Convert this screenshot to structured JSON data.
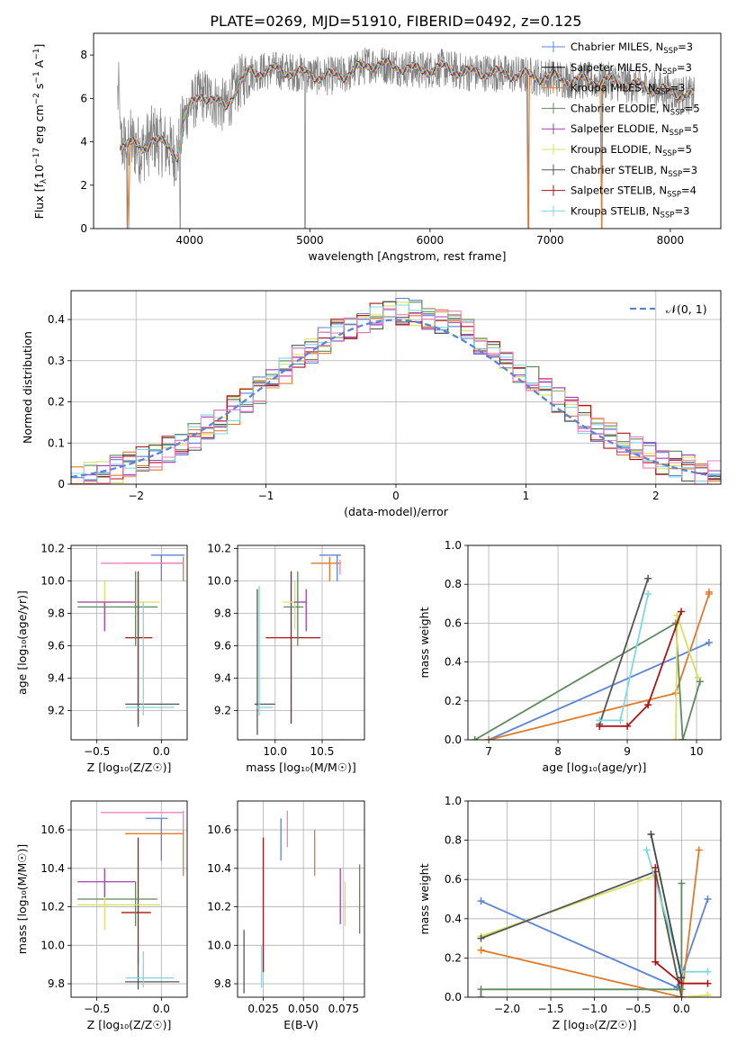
{
  "figure": {
    "title": "PLATE=0269, MJD=51910, FIBERID=0492, z=0.125"
  },
  "colors": {
    "Chabrier MILES": "#5b84d6",
    "Salpeter MILES": "#000000",
    "Kroupa MILES": "#e07a2a",
    "Chabrier ELODIE": "#5e8a5e",
    "Salpeter ELODIE": "#a040b0",
    "Kroupa ELODIE": "#d9e060",
    "Chabrier STELIB": "#555555",
    "Salpeter STELIB": "#aa1515",
    "Kroupa STELIB": "#7fd8e0",
    "Pink": "#f080c0"
  },
  "chart_data": [
    {
      "id": "spectrum",
      "type": "line",
      "title": "PLATE=0269, MJD=51910, FIBERID=0492, z=0.125",
      "xlabel": "wavelength [Angstrom, rest frame]",
      "ylabel": "Flux [f",
      "ylabel_full": "Flux [fλ 10⁻¹⁷ erg cm⁻² s⁻¹ A⁻¹]",
      "xlim": [
        3200,
        8420
      ],
      "ylim": [
        0,
        9
      ],
      "xticks": [
        4000,
        5000,
        6000,
        7000,
        8000
      ],
      "yticks": [
        0,
        2,
        4,
        6,
        8
      ],
      "legend": "top-right",
      "legend_entries": [
        {
          "name": "Chabrier MILES, N",
          "sub": "SSP",
          "suffix": "=3",
          "color": "#5b84d6"
        },
        {
          "name": "Salpeter MILES, N",
          "sub": "SSP",
          "suffix": "=3",
          "color": "#000000"
        },
        {
          "name": "Kroupa MILES, N",
          "sub": "SSP",
          "suffix": "=3",
          "color": "#e07a2a"
        },
        {
          "name": "Chabrier ELODIE, N",
          "sub": "SSP",
          "suffix": "=5",
          "color": "#5e8a5e"
        },
        {
          "name": "Salpeter ELODIE, N",
          "sub": "SSP",
          "suffix": "=5",
          "color": "#a040b0"
        },
        {
          "name": "Kroupa ELODIE, N",
          "sub": "SSP",
          "suffix": "=5",
          "color": "#d9e060"
        },
        {
          "name": "Chabrier STELIB, N",
          "sub": "SSP",
          "suffix": "=3",
          "color": "#555555"
        },
        {
          "name": "Salpeter STELIB, N",
          "sub": "SSP",
          "suffix": "=4",
          "color": "#aa1515"
        },
        {
          "name": "Kroupa STELIB, N",
          "sub": "SSP",
          "suffix": "=3",
          "color": "#7fd8e0"
        }
      ],
      "model_continuum": [
        [
          3420,
          3.9
        ],
        [
          3500,
          4.0
        ],
        [
          3600,
          3.6
        ],
        [
          3700,
          4.2
        ],
        [
          3800,
          3.8
        ],
        [
          3900,
          3.4
        ],
        [
          3950,
          5.0
        ],
        [
          4000,
          5.6
        ],
        [
          4100,
          6.2
        ],
        [
          4200,
          5.9
        ],
        [
          4300,
          5.6
        ],
        [
          4400,
          6.6
        ],
        [
          4500,
          7.2
        ],
        [
          4700,
          7.3
        ],
        [
          4900,
          7.2
        ],
        [
          5100,
          7.0
        ],
        [
          5300,
          7.1
        ],
        [
          5500,
          7.6
        ],
        [
          5700,
          7.5
        ],
        [
          5900,
          7.3
        ],
        [
          6100,
          7.4
        ],
        [
          6300,
          7.2
        ],
        [
          6500,
          7.2
        ],
        [
          6700,
          7.1
        ],
        [
          6900,
          7.0
        ],
        [
          7100,
          6.9
        ],
        [
          7300,
          6.8
        ],
        [
          7500,
          6.8
        ],
        [
          7700,
          6.6
        ],
        [
          7900,
          6.4
        ],
        [
          8100,
          6.2
        ],
        [
          8200,
          6.1
        ]
      ],
      "observed_range": [
        3400,
        8200
      ],
      "absorption_dips": [
        {
          "x": 3480,
          "y": 0.0
        },
        {
          "x": 3920,
          "y": 0.0
        },
        {
          "x": 4960,
          "y": 0.0
        },
        {
          "x": 6820,
          "y": 0.0
        },
        {
          "x": 7430,
          "y": 0.0
        }
      ]
    },
    {
      "id": "residuals",
      "type": "histogram",
      "xlabel": "(data-model)/error",
      "ylabel": "Normed distribution",
      "xlim": [
        -2.5,
        2.5
      ],
      "ylim": [
        0,
        0.47
      ],
      "xticks": [
        -2,
        -1,
        0,
        1,
        2
      ],
      "yticks": [
        0.0,
        0.1,
        0.2,
        0.3,
        0.4
      ],
      "grid": true,
      "legend": "top-right",
      "legend_entry": "𝒩(0, 1)",
      "gaussian": {
        "mean": 0,
        "sigma": 1,
        "color": "#5b84d6"
      },
      "bin_width": 0.1
    },
    {
      "id": "age-vs-Z",
      "type": "errorbar",
      "xlabel": "Z [log₁₀(Z/Z☉)]",
      "ylabel": "age  [log₁₀(age/yr)]",
      "xlim": [
        -0.7,
        0.2
      ],
      "ylim": [
        9.02,
        10.22
      ],
      "xticks": [
        -0.5,
        0.0
      ],
      "yticks": [
        9.2,
        9.4,
        9.6,
        9.8,
        10.0,
        10.2
      ],
      "grid": true,
      "points": [
        {
          "c": "#5b84d6",
          "x": 0.0,
          "xl": -0.08,
          "xh": 0.18,
          "y": 10.16,
          "yl": 10.0,
          "yh": 10.16
        },
        {
          "c": "#e07a2a",
          "x": 0.17,
          "xl": -0.28,
          "xh": 0.17,
          "y": 10.11,
          "yl": 10.0,
          "yh": 10.15
        },
        {
          "c": "#f080c0",
          "x": -0.38,
          "xl": -0.47,
          "xh": 0.17,
          "y": 10.11,
          "yl": 10.11,
          "yh": 10.11
        },
        {
          "c": "#aa1515",
          "x": -0.18,
          "xl": -0.28,
          "xh": -0.07,
          "y": 9.65,
          "yl": 9.12,
          "yh": 10.06
        },
        {
          "c": "#5e8a5e",
          "x": -0.2,
          "xl": -0.65,
          "xh": -0.03,
          "y": 9.84,
          "yl": 9.6,
          "yh": 10.06
        },
        {
          "c": "#d9e060",
          "x": -0.44,
          "xl": -0.65,
          "xh": -0.01,
          "y": 9.87,
          "yl": 9.7,
          "yh": 10.0
        },
        {
          "c": "#a040b0",
          "x": -0.44,
          "xl": -0.65,
          "xh": -0.2,
          "y": 9.87,
          "yl": 9.69,
          "yh": 9.87
        },
        {
          "c": "#555555",
          "x": -0.18,
          "xl": -0.28,
          "xh": 0.14,
          "y": 9.24,
          "yl": 9.1,
          "yh": 10.0
        },
        {
          "c": "#7fd8e0",
          "x": -0.14,
          "xl": -0.28,
          "xh": 0.1,
          "y": 9.22,
          "yl": 9.17,
          "yh": 9.87
        }
      ]
    },
    {
      "id": "age-vs-mass",
      "type": "errorbar",
      "xlabel": "mass [log₁₀(M/M☉)]",
      "ylabel": "",
      "xlim": [
        9.6,
        10.95
      ],
      "ylim": [
        9.02,
        10.22
      ],
      "xticks": [
        10.0,
        10.5
      ],
      "yticks": [
        9.2,
        9.4,
        9.6,
        9.8,
        10.0,
        10.2
      ],
      "grid": true,
      "points": [
        {
          "c": "#5b84d6",
          "x": 10.66,
          "xl": 10.47,
          "xh": 10.7,
          "y": 10.16,
          "yl": 10.0,
          "yh": 10.16
        },
        {
          "c": "#e07a2a",
          "x": 10.58,
          "xl": 10.38,
          "xh": 10.7,
          "y": 10.11,
          "yl": 10.0,
          "yh": 10.15
        },
        {
          "c": "#f080c0",
          "x": 10.69,
          "xl": 10.69,
          "xh": 10.7,
          "y": 10.11,
          "yl": 10.04,
          "yh": 10.13
        },
        {
          "c": "#aa1515",
          "x": 10.17,
          "xl": 9.9,
          "xh": 10.48,
          "y": 9.65,
          "yl": 9.12,
          "yh": 10.06
        },
        {
          "c": "#5e8a5e",
          "x": 10.24,
          "xl": 10.09,
          "xh": 10.3,
          "y": 9.84,
          "yl": 9.6,
          "yh": 10.06
        },
        {
          "c": "#d9e060",
          "x": 10.21,
          "xl": 10.08,
          "xh": 10.32,
          "y": 9.87,
          "yl": 9.7,
          "yh": 10.0
        },
        {
          "c": "#a040b0",
          "x": 10.33,
          "xl": 10.2,
          "xh": 10.33,
          "y": 9.87,
          "yl": 9.69,
          "yh": 9.95
        },
        {
          "c": "#555555",
          "x": 9.81,
          "xl": 9.78,
          "xh": 10.0,
          "y": 9.24,
          "yl": 9.05,
          "yh": 9.95
        },
        {
          "c": "#7fd8e0",
          "x": 9.83,
          "xl": 9.8,
          "xh": 9.98,
          "y": 9.22,
          "yl": 9.17,
          "yh": 9.97
        }
      ]
    },
    {
      "id": "mass-weight-vs-age",
      "type": "line",
      "xlabel": "age  [log₁₀(age/yr)]",
      "ylabel": "mass weight",
      "xlim": [
        6.7,
        10.35
      ],
      "ylim": [
        0,
        1.0
      ],
      "xticks": [
        7,
        8,
        9,
        10
      ],
      "yticks": [
        0.0,
        0.2,
        0.4,
        0.6,
        0.8,
        1.0
      ],
      "grid": true,
      "series": [
        {
          "c": "#5b84d6",
          "pts": [
            [
              7.0,
              0.0
            ],
            [
              10.18,
              0.5
            ]
          ]
        },
        {
          "c": "#e07a2a",
          "pts": [
            [
              7.0,
              0.0
            ],
            [
              9.7,
              0.24
            ],
            [
              10.18,
              0.75
            ],
            [
              10.18,
              0.76
            ]
          ]
        },
        {
          "c": "#5e8a5e",
          "pts": [
            [
              6.8,
              0.0
            ],
            [
              9.7,
              0.6
            ],
            [
              9.8,
              0.0
            ],
            [
              10.05,
              0.3
            ]
          ]
        },
        {
          "c": "#d9e060",
          "pts": [
            [
              9.7,
              0.0
            ],
            [
              9.72,
              0.64
            ],
            [
              10.02,
              0.32
            ]
          ]
        },
        {
          "c": "#555555",
          "pts": [
            [
              8.6,
              0.08
            ],
            [
              9.3,
              0.83
            ]
          ]
        },
        {
          "c": "#7fd8e0",
          "pts": [
            [
              8.6,
              0.1
            ],
            [
              8.9,
              0.1
            ],
            [
              9.3,
              0.75
            ]
          ]
        },
        {
          "c": "#aa1515",
          "pts": [
            [
              8.6,
              0.07
            ],
            [
              9.0,
              0.07
            ],
            [
              9.3,
              0.18
            ],
            [
              9.78,
              0.66
            ]
          ]
        }
      ]
    },
    {
      "id": "mass-vs-Z",
      "type": "errorbar",
      "xlabel": "Z [log₁₀(Z/Z☉)]",
      "ylabel": "mass [log₁₀(M/M☉)]",
      "xlim": [
        -0.7,
        0.2
      ],
      "ylim": [
        9.73,
        10.75
      ],
      "xticks": [
        -0.5,
        0.0
      ],
      "yticks": [
        9.8,
        10.0,
        10.2,
        10.4,
        10.6
      ],
      "grid": true,
      "points": [
        {
          "c": "#5b84d6",
          "x": 0.0,
          "xl": -0.12,
          "xh": 0.05,
          "y": 10.66,
          "yl": 10.44,
          "yh": 10.66
        },
        {
          "c": "#e07a2a",
          "x": 0.17,
          "xl": -0.28,
          "xh": 0.17,
          "y": 10.58,
          "yl": 10.36,
          "yh": 10.6
        },
        {
          "c": "#f080c0",
          "x": 0.17,
          "xl": -0.47,
          "xh": 0.17,
          "y": 10.69,
          "yl": 10.6,
          "yh": 10.7
        },
        {
          "c": "#aa1515",
          "x": -0.18,
          "xl": -0.31,
          "xh": -0.08,
          "y": 10.17,
          "yl": 9.9,
          "yh": 10.56
        },
        {
          "c": "#5e8a5e",
          "x": -0.2,
          "xl": -0.65,
          "xh": -0.03,
          "y": 10.24,
          "yl": 10.1,
          "yh": 10.33
        },
        {
          "c": "#d9e060",
          "x": -0.44,
          "xl": -0.65,
          "xh": -0.01,
          "y": 10.21,
          "yl": 10.08,
          "yh": 10.32
        },
        {
          "c": "#a040b0",
          "x": -0.44,
          "xl": -0.65,
          "xh": -0.2,
          "y": 10.33,
          "yl": 10.25,
          "yh": 10.4
        },
        {
          "c": "#555555",
          "x": -0.18,
          "xl": -0.28,
          "xh": 0.14,
          "y": 9.81,
          "yl": 9.77,
          "yh": 9.96
        },
        {
          "c": "#7fd8e0",
          "x": -0.14,
          "xl": -0.28,
          "xh": 0.1,
          "y": 9.83,
          "yl": 9.78,
          "yh": 9.97
        }
      ]
    },
    {
      "id": "mass-vs-EBV",
      "type": "errorbar",
      "xlabel": "E(B-V)",
      "ylabel": "",
      "xlim": [
        0.009,
        0.088
      ],
      "ylim": [
        9.73,
        10.75
      ],
      "xticks": [
        0.025,
        0.05,
        0.075
      ],
      "xticklabels": [
        "0.025",
        "0.050",
        "0.075"
      ],
      "yticks": [
        9.8,
        10.0,
        10.2,
        10.4,
        10.6
      ],
      "grid": true,
      "points": [
        {
          "c": "#5b84d6",
          "x": 0.036,
          "xl": 0.036,
          "xh": 0.036,
          "y": 10.55,
          "yl": 10.44,
          "yh": 10.66
        },
        {
          "c": "#e07a2a",
          "x": 0.057,
          "xl": 0.057,
          "xh": 0.057,
          "y": 10.48,
          "yl": 10.36,
          "yh": 10.6
        },
        {
          "c": "#f080c0",
          "x": 0.04,
          "xl": 0.04,
          "xh": 0.04,
          "y": 10.6,
          "yl": 10.51,
          "yh": 10.7
        },
        {
          "c": "#aa1515",
          "x": 0.025,
          "xl": 0.025,
          "xh": 0.025,
          "y": 10.2,
          "yl": 9.86,
          "yh": 10.56
        },
        {
          "c": "#5e8a5e",
          "x": 0.085,
          "xl": 0.085,
          "xh": 0.085,
          "y": 10.25,
          "yl": 10.06,
          "yh": 10.42
        },
        {
          "c": "#d9e060",
          "x": 0.076,
          "xl": 0.076,
          "xh": 0.076,
          "y": 10.2,
          "yl": 10.1,
          "yh": 10.33
        },
        {
          "c": "#a040b0",
          "x": 0.073,
          "xl": 0.073,
          "xh": 0.073,
          "y": 10.22,
          "yl": 10.11,
          "yh": 10.4
        },
        {
          "c": "#555555",
          "x": 0.013,
          "xl": 0.013,
          "xh": 0.013,
          "y": 9.9,
          "yl": 9.75,
          "yh": 10.08
        },
        {
          "c": "#7fd8e0",
          "x": 0.024,
          "xl": 0.024,
          "xh": 0.024,
          "y": 9.9,
          "yl": 9.78,
          "yh": 10.0
        }
      ]
    },
    {
      "id": "mass-weight-vs-Z",
      "type": "line",
      "xlabel": "Z [log₁₀(Z/Z☉)]",
      "ylabel": "mass weight",
      "xlim": [
        -2.45,
        0.45
      ],
      "ylim": [
        0,
        1.0
      ],
      "xticks": [
        -2.0,
        -1.5,
        -1.0,
        -0.5,
        0.0
      ],
      "xticklabels": [
        "−2.0",
        "−1.5",
        "−1.0",
        "−0.5",
        "0.0"
      ],
      "yticks": [
        0.0,
        0.2,
        0.4,
        0.6,
        0.8,
        1.0
      ],
      "grid": true,
      "series": [
        {
          "c": "#5b84d6",
          "pts": [
            [
              -2.3,
              0.49
            ],
            [
              -0.05,
              0.05
            ],
            [
              0.3,
              0.5
            ]
          ]
        },
        {
          "c": "#e07a2a",
          "pts": [
            [
              -2.3,
              0.24
            ],
            [
              0.0,
              0.0
            ],
            [
              0.2,
              0.75
            ]
          ]
        },
        {
          "c": "#5e8a5e",
          "pts": [
            [
              -2.3,
              0.0
            ],
            [
              -2.3,
              0.04
            ],
            [
              0.0,
              0.04
            ],
            [
              0.0,
              0.58
            ]
          ]
        },
        {
          "c": "#d9e060",
          "pts": [
            [
              -2.3,
              0.31
            ],
            [
              -0.3,
              0.62
            ],
            [
              0.0,
              0.0
            ],
            [
              0.3,
              0.01
            ]
          ]
        },
        {
          "c": "#555555",
          "pts": [
            [
              -2.3,
              0.3
            ],
            [
              -0.3,
              0.64
            ],
            [
              0.0,
              0.0
            ]
          ]
        },
        {
          "c": "#7fd8e0",
          "pts": [
            [
              -0.4,
              0.75
            ],
            [
              0.0,
              0.13
            ],
            [
              0.3,
              0.13
            ]
          ]
        },
        {
          "c": "#aa1515",
          "pts": [
            [
              -0.3,
              0.66
            ],
            [
              -0.3,
              0.18
            ],
            [
              0.0,
              0.07
            ],
            [
              0.3,
              0.07
            ]
          ]
        },
        {
          "c": "#444444",
          "pts": [
            [
              -0.35,
              0.83
            ],
            [
              0.0,
              0.1
            ]
          ]
        }
      ]
    }
  ]
}
